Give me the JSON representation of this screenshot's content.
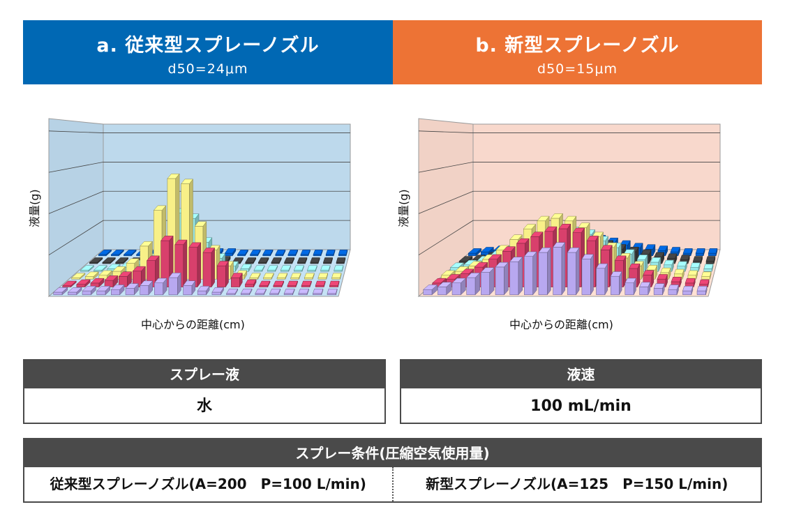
{
  "header_a": {
    "title": "a. 従来型スプレーノズル",
    "subtitle": "d50=24μm",
    "color": "#0068B4"
  },
  "header_b": {
    "title": "b. 新型スプレーノズル",
    "subtitle": "d50=15μm",
    "color": "#ED7335"
  },
  "chart_data": [
    {
      "type": "bar",
      "variant": "3d-bar",
      "ylabel": "液量(g)",
      "xlabel": "中心からの距離(cm)",
      "background": "#BDD9EC",
      "series": [
        {
          "color": "#B8A8F0",
          "values": [
            0.2,
            0.2,
            0.3,
            0.3,
            0.4,
            0.5,
            0.7,
            0.9,
            1.3,
            0.7,
            0.3,
            0.2,
            0.1,
            0.1,
            0.1,
            0.1,
            0.1,
            0.1,
            0.1,
            0.1
          ]
        },
        {
          "color": "#D8406C",
          "values": [
            0.1,
            0.2,
            0.3,
            0.5,
            0.8,
            1.2,
            2.0,
            3.5,
            3.2,
            3.0,
            2.6,
            1.6,
            0.7,
            0.2,
            0.1,
            0.1,
            0.1,
            0.1,
            0.1,
            0.1
          ]
        },
        {
          "color": "#F8F088",
          "values": [
            0.1,
            0.2,
            0.3,
            0.6,
            1.2,
            2.5,
            5.2,
            7.6,
            7.2,
            4.0,
            2.2,
            1.0,
            0.3,
            0.1,
            0.1,
            0.1,
            0.1,
            0.1,
            0.1,
            0.1
          ]
        },
        {
          "color": "#98E8E8",
          "values": [
            0.1,
            0.1,
            0.2,
            0.3,
            0.5,
            1.0,
            2.2,
            4.4,
            4.0,
            2.2,
            1.0,
            0.4,
            0.2,
            0.1,
            0.1,
            0.1,
            0.1,
            0.1,
            0.1,
            0.1
          ]
        },
        {
          "color": "#404040",
          "values": [
            0.1,
            0.1,
            0.1,
            0.1,
            0.2,
            0.2,
            0.3,
            0.4,
            0.3,
            0.2,
            0.2,
            0.1,
            0.1,
            0.1,
            0.1,
            0.1,
            0.1,
            0.1,
            0.1,
            0.1
          ]
        },
        {
          "color": "#0060D0",
          "values": [
            0.1,
            0.1,
            0.1,
            0.1,
            0.1,
            0.1,
            0.2,
            0.2,
            0.2,
            0.2,
            0.2,
            0.1,
            0.1,
            0.1,
            0.1,
            0.1,
            0.1,
            0.1,
            0.1,
            0.1
          ]
        }
      ],
      "ylim": [
        0,
        10
      ]
    },
    {
      "type": "bar",
      "variant": "3d-bar",
      "ylabel": "液量(g)",
      "xlabel": "中心からの距離(cm)",
      "background": "#F8D8CC",
      "series": [
        {
          "color": "#B8A8F0",
          "values": [
            0.4,
            0.6,
            0.9,
            1.3,
            1.7,
            2.1,
            2.5,
            2.9,
            3.2,
            3.6,
            3.2,
            2.7,
            2.0,
            1.4,
            0.9,
            0.6,
            0.5,
            0.4,
            0.3,
            0.3
          ]
        },
        {
          "color": "#D8406C",
          "values": [
            0.3,
            0.6,
            1.0,
            1.5,
            2.1,
            2.7,
            3.3,
            3.8,
            4.2,
            4.4,
            4.1,
            3.5,
            2.8,
            2.0,
            1.4,
            0.9,
            0.6,
            0.4,
            0.3,
            0.2
          ]
        },
        {
          "color": "#F8F088",
          "values": [
            0.3,
            0.6,
            1.0,
            1.5,
            2.2,
            3.0,
            3.8,
            4.4,
            4.6,
            4.4,
            3.9,
            3.2,
            2.4,
            1.6,
            1.0,
            0.7,
            0.5,
            0.4,
            0.3,
            0.2
          ]
        },
        {
          "color": "#98E8E8",
          "values": [
            0.3,
            0.5,
            0.8,
            1.2,
            1.6,
            2.1,
            2.6,
            3.0,
            3.1,
            3.0,
            2.8,
            2.3,
            1.8,
            1.3,
            0.9,
            0.7,
            0.5,
            0.4,
            0.3,
            0.2
          ]
        },
        {
          "color": "#404040",
          "values": [
            0.2,
            0.3,
            0.5,
            0.6,
            0.8,
            1.0,
            1.2,
            1.5,
            1.7,
            1.8,
            1.6,
            1.4,
            1.1,
            0.9,
            0.7,
            0.5,
            0.4,
            0.3,
            0.2,
            0.2
          ]
        },
        {
          "color": "#0060D0",
          "values": [
            0.2,
            0.3,
            0.4,
            0.5,
            0.6,
            0.8,
            1.0,
            1.2,
            1.3,
            1.3,
            1.2,
            1.0,
            0.8,
            0.6,
            0.5,
            0.4,
            0.3,
            0.2,
            0.2,
            0.2
          ]
        }
      ],
      "ylim": [
        0,
        10
      ]
    }
  ],
  "liquid": {
    "label": "スプレー液",
    "value": "水"
  },
  "rate": {
    "label": "液速",
    "value": "100 mL/min"
  },
  "conditions": {
    "label": "スプレー条件(圧縮空気使用量)",
    "conventional": "従来型スプレーノズル(A=200　P=100 L/min)",
    "new": "新型スプレーノズル(A=125　P=150 L/min)"
  }
}
